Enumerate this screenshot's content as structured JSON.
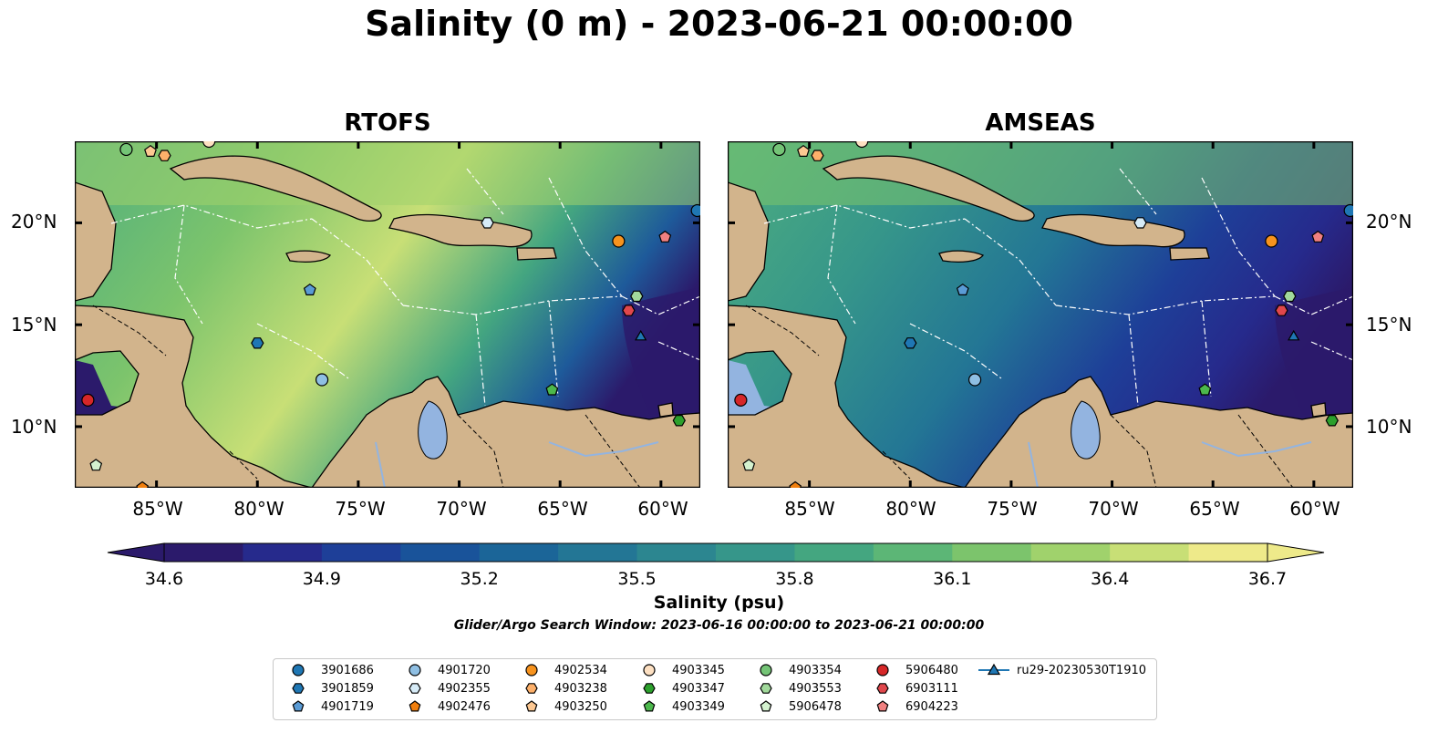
{
  "title": "Salinity (0 m) - 2023-06-21 00:00:00",
  "panels": [
    {
      "title": "RTOFS",
      "palette": "saltier"
    },
    {
      "title": "AMSEAS",
      "palette": "fresher"
    }
  ],
  "axes": {
    "lon_labels": [
      "85°W",
      "80°W",
      "75°W",
      "70°W",
      "65°W",
      "60°W"
    ],
    "lat_labels": [
      "20°N",
      "15°N",
      "10°N"
    ]
  },
  "colorbar": {
    "label": "Salinity (psu)",
    "ticks": [
      "34.6",
      "34.9",
      "35.2",
      "35.5",
      "35.8",
      "36.1",
      "36.4",
      "36.7"
    ],
    "colors": [
      "#2b1a6b",
      "#262a8c",
      "#1e3f98",
      "#19539a",
      "#1b6598",
      "#237695",
      "#2c8690",
      "#36968a",
      "#44a680",
      "#5cb676",
      "#7cc46c",
      "#a0d26c",
      "#c8df76",
      "#eeea8a"
    ]
  },
  "search_window": "Glider/Argo Search Window: 2023-06-16 00:00:00 to 2023-06-21 00:00:00",
  "legend": [
    {
      "label": "3901686",
      "marker": "circle",
      "color": "#1f77b4"
    },
    {
      "label": "3901859",
      "marker": "hexagon",
      "color": "#1f77b4"
    },
    {
      "label": "4901719",
      "marker": "pentagon",
      "color": "#5a9bd5"
    },
    {
      "label": "4901720",
      "marker": "circle",
      "color": "#8fbfe3"
    },
    {
      "label": "4902355",
      "marker": "hexagon",
      "color": "#d6ebf7"
    },
    {
      "label": "4902476",
      "marker": "pentagon",
      "color": "#f07f0e"
    },
    {
      "label": "4902534",
      "marker": "circle",
      "color": "#f7931e"
    },
    {
      "label": "4903238",
      "marker": "hexagon",
      "color": "#fdb06a"
    },
    {
      "label": "4903250",
      "marker": "pentagon",
      "color": "#fdc892"
    },
    {
      "label": "4903345",
      "marker": "circle",
      "color": "#fde0c2"
    },
    {
      "label": "4903347",
      "marker": "hexagon",
      "color": "#2ca02c"
    },
    {
      "label": "4903349",
      "marker": "pentagon",
      "color": "#4cb84c"
    },
    {
      "label": "4903354",
      "marker": "circle",
      "color": "#74c476"
    },
    {
      "label": "4903553",
      "marker": "hexagon",
      "color": "#a1d99b"
    },
    {
      "label": "5906478",
      "marker": "pentagon",
      "color": "#d4f2cf"
    },
    {
      "label": "5906480",
      "marker": "circle",
      "color": "#d62728"
    },
    {
      "label": "6903111",
      "marker": "hexagon",
      "color": "#e0474c"
    },
    {
      "label": "6904223",
      "marker": "pentagon",
      "color": "#f08080"
    },
    {
      "label": "ru29-20230530T1910",
      "marker": "triangle-line",
      "color": "#1f77b4"
    }
  ],
  "observations": [
    {
      "id": "3901686",
      "lon": -58.2,
      "lat": 20.6
    },
    {
      "id": "3901859",
      "lon": -80.0,
      "lat": 14.1
    },
    {
      "id": "4901719",
      "lon": -77.4,
      "lat": 16.7
    },
    {
      "id": "4901720",
      "lon": -76.8,
      "lat": 12.3
    },
    {
      "id": "4902355",
      "lon": -68.6,
      "lat": 20.0
    },
    {
      "id": "4902476",
      "lon": -85.7,
      "lat": 7.0
    },
    {
      "id": "4902534",
      "lon": -62.1,
      "lat": 19.1
    },
    {
      "id": "4903238",
      "lon": -84.6,
      "lat": 23.3
    },
    {
      "id": "4903250",
      "lon": -85.3,
      "lat": 23.5
    },
    {
      "id": "4903345",
      "lon": -82.4,
      "lat": 24.0
    },
    {
      "id": "4903347",
      "lon": -59.1,
      "lat": 10.3
    },
    {
      "id": "4903349",
      "lon": -65.4,
      "lat": 11.8
    },
    {
      "id": "4903354",
      "lon": -86.5,
      "lat": 23.6
    },
    {
      "id": "4903553",
      "lon": -61.2,
      "lat": 16.4
    },
    {
      "id": "5906478",
      "lon": -88.0,
      "lat": 8.1
    },
    {
      "id": "5906480",
      "lon": -88.4,
      "lat": 11.3
    },
    {
      "id": "6903111",
      "lon": -61.6,
      "lat": 15.7
    },
    {
      "id": "6904223",
      "lon": -59.8,
      "lat": 19.3
    },
    {
      "id": "ru29-20230530T1910",
      "lon": -61.0,
      "lat": 14.4
    }
  ]
}
